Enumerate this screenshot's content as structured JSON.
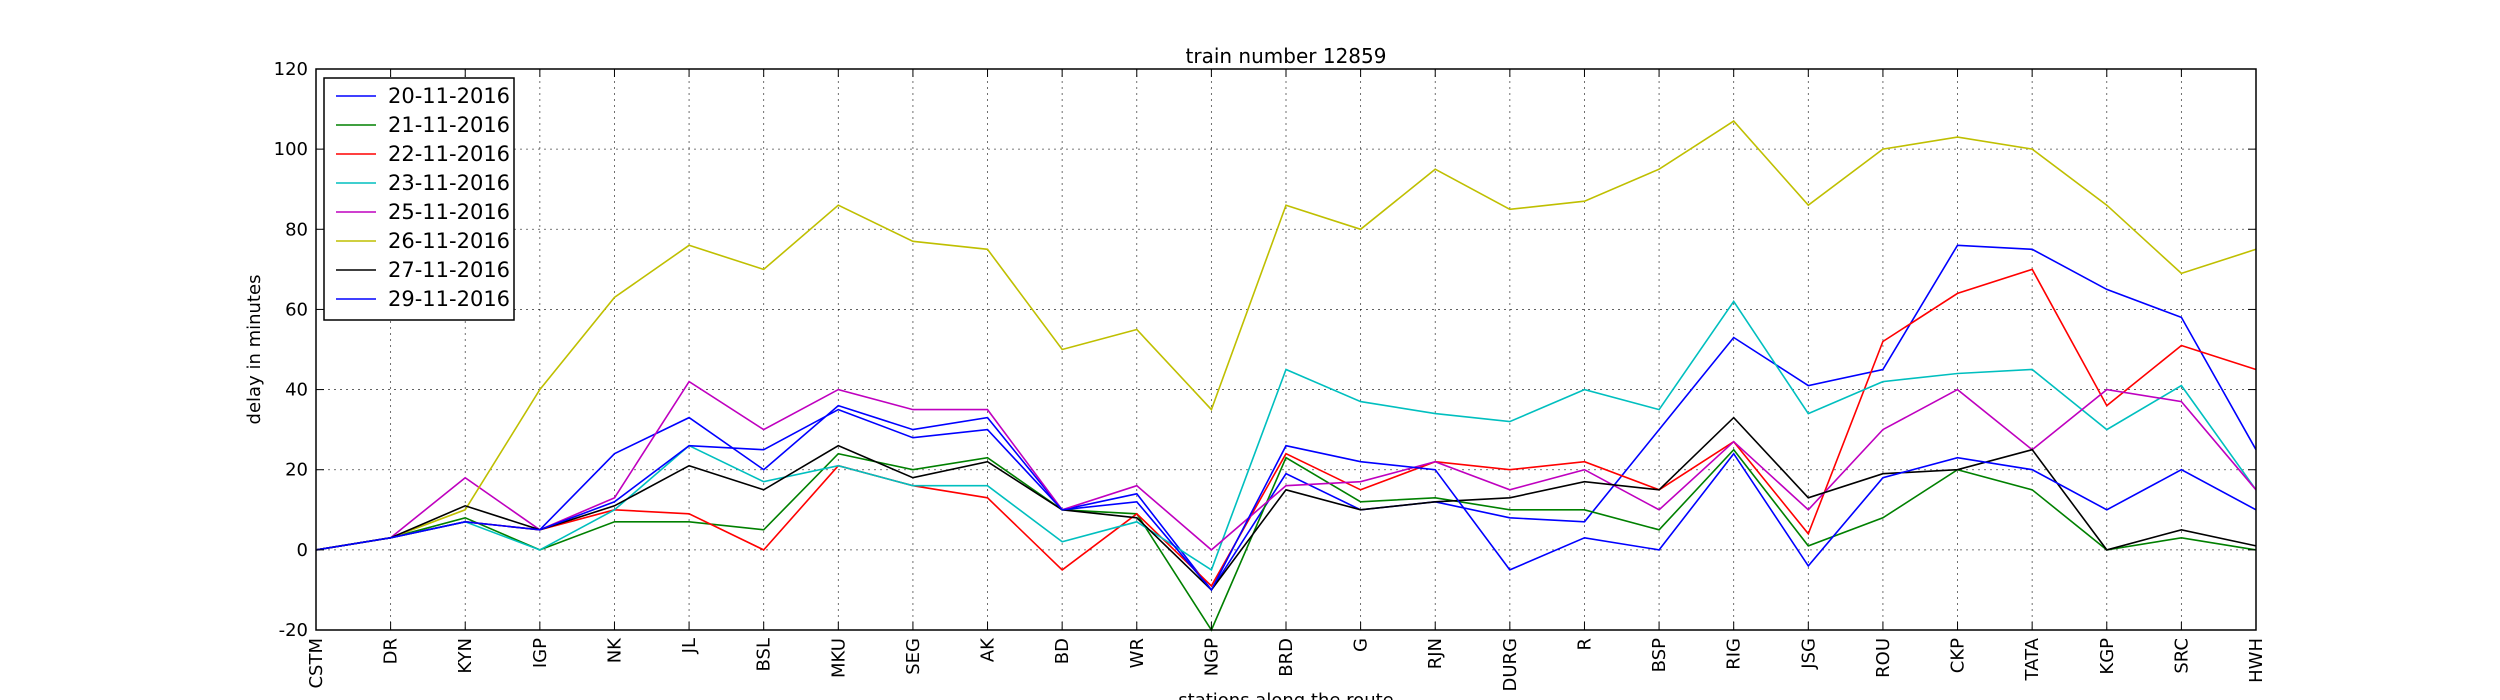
{
  "chart_data": {
    "type": "line",
    "title": "train number 12859",
    "xlabel": "stations along the route",
    "ylabel": "delay in minutes",
    "ylim": [
      -20,
      120
    ],
    "yticks": [
      -20,
      0,
      20,
      40,
      60,
      80,
      100,
      120
    ],
    "grid": true,
    "legend_position": "top-left",
    "categories": [
      "CSTM",
      "DR",
      "KYN",
      "IGP",
      "NK",
      "JL",
      "BSL",
      "MKU",
      "SEG",
      "AK",
      "BD",
      "WR",
      "NGP",
      "BRD",
      "G",
      "RJN",
      "DURG",
      "R",
      "BSP",
      "RIG",
      "JSG",
      "ROU",
      "CKP",
      "TATA",
      "KGP",
      "SRC",
      "HWH"
    ],
    "series": [
      {
        "name": "20-11-2016",
        "color": "#0000ff",
        "values": [
          0,
          3,
          7,
          5,
          24,
          33,
          20,
          36,
          30,
          33,
          10,
          14,
          -10,
          19,
          10,
          12,
          8,
          7,
          30,
          53,
          41,
          45,
          76,
          75,
          65,
          58,
          25
        ]
      },
      {
        "name": "21-11-2016",
        "color": "#008000",
        "values": [
          0,
          3,
          8,
          0,
          7,
          7,
          5,
          24,
          20,
          23,
          10,
          9,
          -20,
          23,
          12,
          13,
          10,
          10,
          5,
          25,
          1,
          8,
          20,
          15,
          0,
          3,
          0
        ]
      },
      {
        "name": "22-11-2016",
        "color": "#ff0000",
        "values": [
          0,
          3,
          7,
          5,
          10,
          9,
          0,
          21,
          16,
          13,
          -5,
          9,
          -9,
          24,
          15,
          22,
          20,
          22,
          15,
          27,
          4,
          52,
          64,
          70,
          36,
          51,
          45
        ]
      },
      {
        "name": "23-11-2016",
        "color": "#00bfbf",
        "values": [
          0,
          3,
          7,
          0,
          10,
          26,
          17,
          21,
          16,
          16,
          2,
          7,
          -5,
          45,
          37,
          34,
          32,
          40,
          35,
          62,
          34,
          42,
          44,
          45,
          30,
          41,
          15
        ]
      },
      {
        "name": "25-11-2016",
        "color": "#bf00bf",
        "values": [
          0,
          3,
          18,
          5,
          13,
          42,
          30,
          40,
          35,
          35,
          10,
          16,
          0,
          16,
          17,
          22,
          15,
          20,
          10,
          27,
          10,
          30,
          40,
          25,
          40,
          37,
          15
        ]
      },
      {
        "name": "26-11-2016",
        "color": "#bfbf00",
        "values": [
          0,
          3,
          10,
          40,
          63,
          76,
          70,
          86,
          77,
          75,
          50,
          55,
          35,
          86,
          80,
          95,
          85,
          87,
          95,
          107,
          86,
          100,
          103,
          100,
          86,
          69,
          75
        ]
      },
      {
        "name": "27-11-2016",
        "color": "#000000",
        "values": [
          0,
          3,
          11,
          5,
          11,
          21,
          15,
          26,
          18,
          22,
          10,
          8,
          -10,
          15,
          10,
          12,
          13,
          17,
          15,
          33,
          13,
          19,
          20,
          25,
          0,
          5,
          1
        ]
      },
      {
        "name": "29-11-2016",
        "color": "#0000ff",
        "values": [
          0,
          3,
          7,
          5,
          12,
          26,
          25,
          35,
          28,
          30,
          10,
          12,
          -10,
          26,
          22,
          20,
          -5,
          3,
          0,
          24,
          -4,
          18,
          23,
          20,
          10,
          20,
          10
        ]
      }
    ]
  }
}
